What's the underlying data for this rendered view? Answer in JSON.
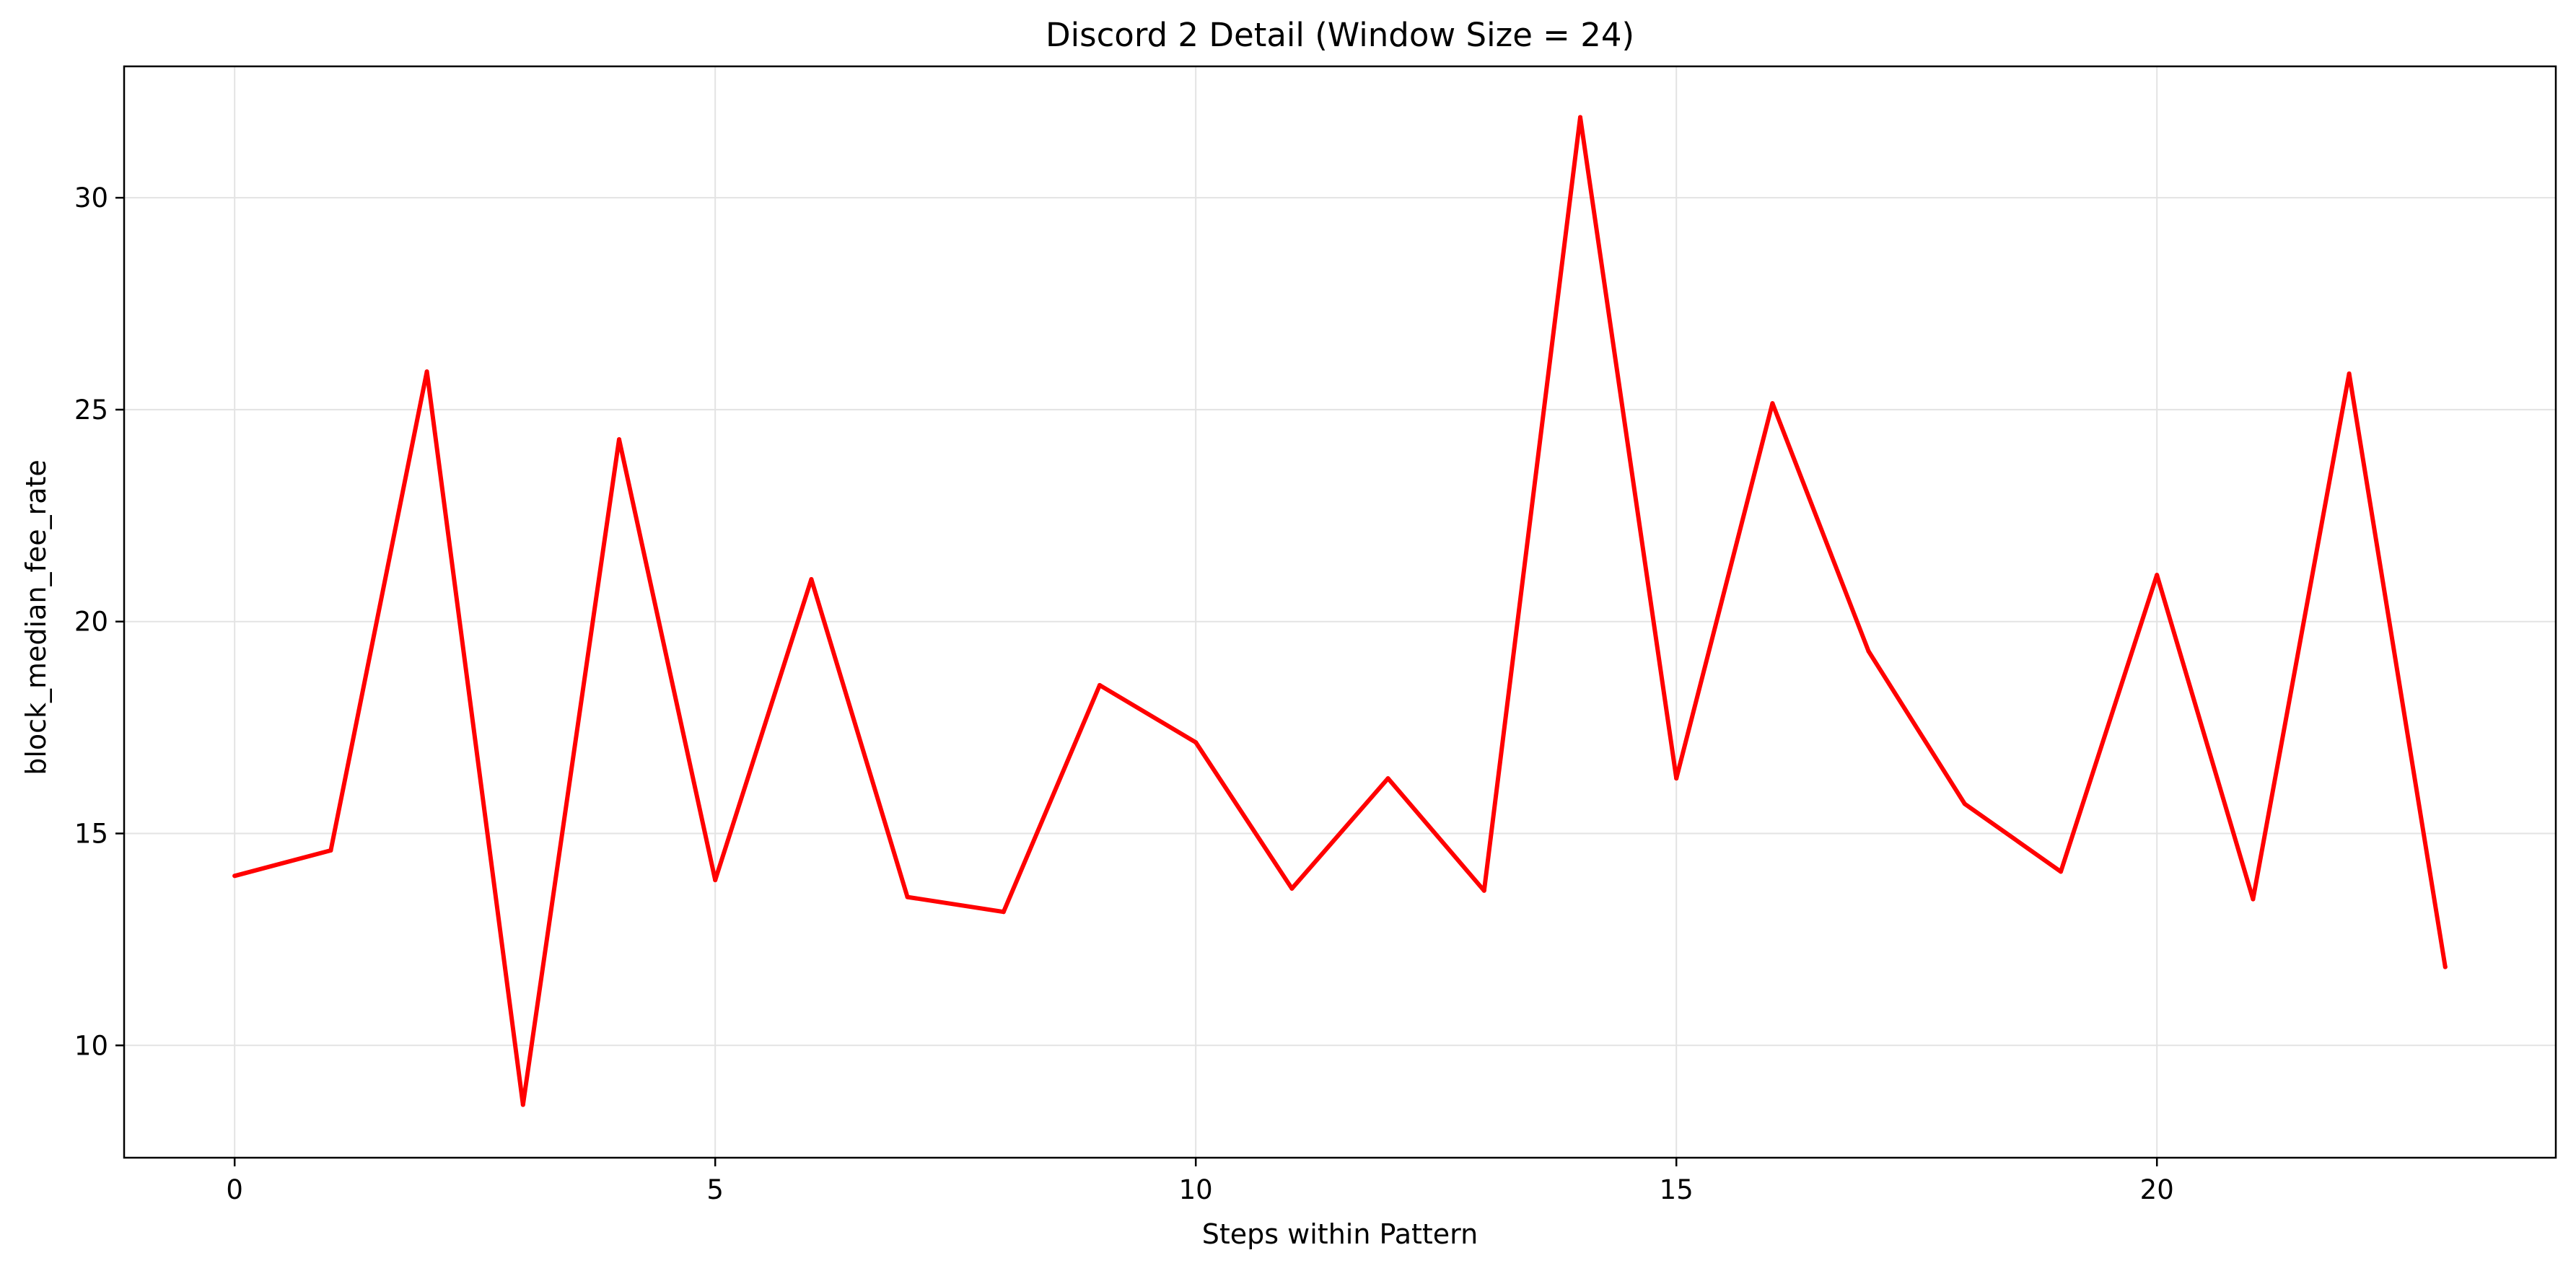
{
  "chart_data": {
    "type": "line",
    "title": "Discord 2 Detail (Window Size = 24)",
    "xlabel": "Steps within Pattern",
    "ylabel": "block_median_fee_rate",
    "xlim": [
      -1.15,
      24.15
    ],
    "ylim": [
      7.35,
      33.1
    ],
    "xticks": [
      0,
      5,
      10,
      15,
      20
    ],
    "xtick_labels": [
      "0",
      "5",
      "10",
      "15",
      "20"
    ],
    "yticks": [
      10,
      15,
      20,
      25,
      30
    ],
    "ytick_labels": [
      "10",
      "15",
      "20",
      "25",
      "30"
    ],
    "grid": true,
    "legend": "none",
    "series": [
      {
        "color": "#ff0000",
        "x": [
          0,
          1,
          2,
          3,
          4,
          5,
          6,
          7,
          8,
          9,
          10,
          11,
          12,
          13,
          14,
          15,
          16,
          17,
          18,
          19,
          20,
          21,
          22,
          23
        ],
        "y": [
          14.0,
          14.6,
          25.9,
          8.6,
          24.3,
          13.9,
          21.0,
          13.5,
          13.15,
          18.5,
          17.15,
          13.7,
          16.3,
          13.65,
          31.9,
          16.3,
          25.15,
          19.3,
          15.7,
          14.1,
          21.1,
          13.45,
          25.85,
          11.85
        ]
      }
    ]
  }
}
